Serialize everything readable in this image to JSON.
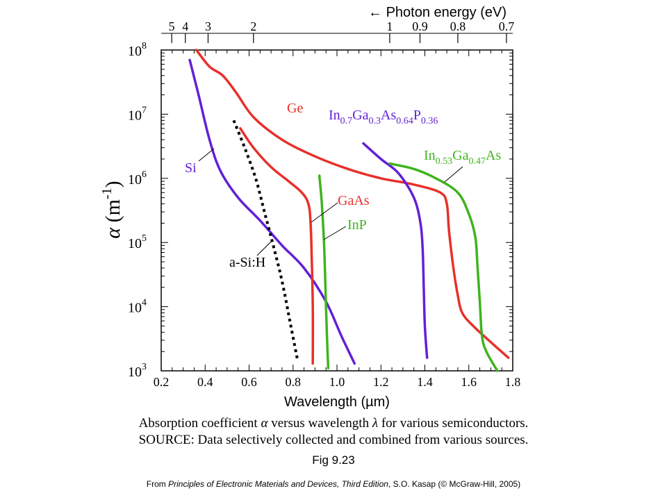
{
  "chart_data": {
    "type": "line",
    "title": "",
    "xlabel": "Wavelength (µm)",
    "ylabel_symbol": "α",
    "ylabel_units": "(m",
    "ylabel_exp": "-1",
    "ylabel_close": ")",
    "top_axis_label": "Photon energy (eV)",
    "top_axis_arrow": "←",
    "xlim": [
      0.2,
      1.8
    ],
    "ylim": [
      1000,
      100000000
    ],
    "yscale": "log",
    "x_ticks": [
      "0.2",
      "0.4",
      "0.6",
      "0.8",
      "1.0",
      "1.2",
      "1.4",
      "1.6",
      "1.8"
    ],
    "y_ticks": [
      {
        "base": "10",
        "exp": "3",
        "value": 1000
      },
      {
        "base": "10",
        "exp": "4",
        "value": 10000
      },
      {
        "base": "10",
        "exp": "5",
        "value": 100000
      },
      {
        "base": "10",
        "exp": "6",
        "value": 1000000
      },
      {
        "base": "10",
        "exp": "7",
        "value": 10000000
      },
      {
        "base": "10",
        "exp": "8",
        "value": 100000000
      }
    ],
    "top_ticks": [
      {
        "label": "5",
        "value": 5
      },
      {
        "label": "4",
        "value": 4
      },
      {
        "label": "3",
        "value": 3
      },
      {
        "label": "2",
        "value": 2
      },
      {
        "label": "1",
        "value": 1
      },
      {
        "label": "0.9",
        "value": 0.9
      },
      {
        "label": "0.8",
        "value": 0.8
      },
      {
        "label": "0.7",
        "value": 0.7
      }
    ],
    "series": [
      {
        "name": "Ge",
        "color": "#e8302a",
        "style": "solid",
        "x": [
          0.36,
          0.42,
          0.48,
          0.54,
          0.62,
          0.75,
          0.9,
          1.05,
          1.2,
          1.35,
          1.47,
          1.5,
          1.51,
          1.53,
          1.55,
          1.57,
          1.62,
          1.7,
          1.78
        ],
        "y": [
          100000000,
          55000000,
          40000000,
          22000000,
          9000000,
          4000000,
          2200000,
          1400000,
          1000000,
          800000,
          600000,
          400000,
          150000,
          40000,
          15000,
          8000,
          5000,
          2800,
          1600
        ]
      },
      {
        "name": "Si",
        "color": "#6320d6",
        "style": "solid",
        "x": [
          0.33,
          0.37,
          0.42,
          0.47,
          0.55,
          0.65,
          0.75,
          0.85,
          0.95,
          1.02,
          1.08
        ],
        "y": [
          70000000,
          20000000,
          4000000,
          1300000,
          500000,
          220000,
          90000,
          40000,
          12000,
          3500,
          1300
        ]
      },
      {
        "name": "GaAs",
        "color": "#e8302a",
        "style": "solid",
        "x": [
          0.56,
          0.62,
          0.7,
          0.78,
          0.84,
          0.87,
          0.88,
          0.885,
          0.89,
          0.89
        ],
        "y": [
          6000000,
          3000000,
          1500000,
          900000,
          600000,
          400000,
          200000,
          60000,
          10000,
          1300
        ]
      },
      {
        "name": "InP",
        "color": "#3fb31e",
        "style": "solid",
        "x": [
          0.92,
          0.93,
          0.94,
          0.945,
          0.95,
          0.955,
          0.96
        ],
        "y": [
          1100000,
          450000,
          120000,
          40000,
          10000,
          3000,
          1100
        ]
      },
      {
        "name": "In0.7Ga0.3As0.64P0.36",
        "color": "#6320d6",
        "style": "solid",
        "x": [
          1.12,
          1.2,
          1.28,
          1.35,
          1.38,
          1.39,
          1.395,
          1.4,
          1.41
        ],
        "y": [
          3500000,
          2000000,
          1200000,
          500000,
          200000,
          80000,
          20000,
          5000,
          1600
        ]
      },
      {
        "name": "In0.53Ga0.47As",
        "color": "#3fb31e",
        "style": "solid",
        "x": [
          1.24,
          1.35,
          1.45,
          1.55,
          1.6,
          1.63,
          1.64,
          1.65,
          1.66,
          1.68,
          1.73
        ],
        "y": [
          1700000,
          1400000,
          1000000,
          600000,
          280000,
          120000,
          40000,
          12000,
          3500,
          2000,
          1000
        ]
      },
      {
        "name": "a-Si:H",
        "color": "#000000",
        "style": "dotted",
        "x": [
          0.53,
          0.58,
          0.63,
          0.67,
          0.71,
          0.75,
          0.79,
          0.82
        ],
        "y": [
          8000000,
          3000000,
          1000000,
          300000,
          90000,
          25000,
          5000,
          1500
        ]
      }
    ],
    "annotations": {
      "ge": "Ge",
      "si": "Si",
      "gaas": "GaAs",
      "inp": "InP",
      "asih": "a-Si:H",
      "ingaasp": {
        "pre1": "In",
        "s1": "0.7",
        "pre2": "Ga",
        "s2": "0.3",
        "pre3": "As",
        "s3": "0.64",
        "pre4": "P",
        "s4": "0.36"
      },
      "ingaas": {
        "pre1": "In",
        "s1": "0.53",
        "pre2": "Ga",
        "s2": "0.47",
        "pre3": "As"
      }
    }
  },
  "caption": {
    "line1_a": "Absorption coefficient ",
    "line1_sym1": "α",
    "line1_b": " versus wavelength ",
    "line1_sym2": "λ",
    "line1_c": " for various semiconductors.",
    "line2": "SOURCE: Data selectively collected and combined from various sources.",
    "fig_label": "Fig 9.23",
    "source_pre": "From ",
    "source_book": "Principles of Electronic Materials and Devices, Third Edition",
    "source_post": ", S.O. Kasap (© McGraw-Hill,  2005)"
  }
}
